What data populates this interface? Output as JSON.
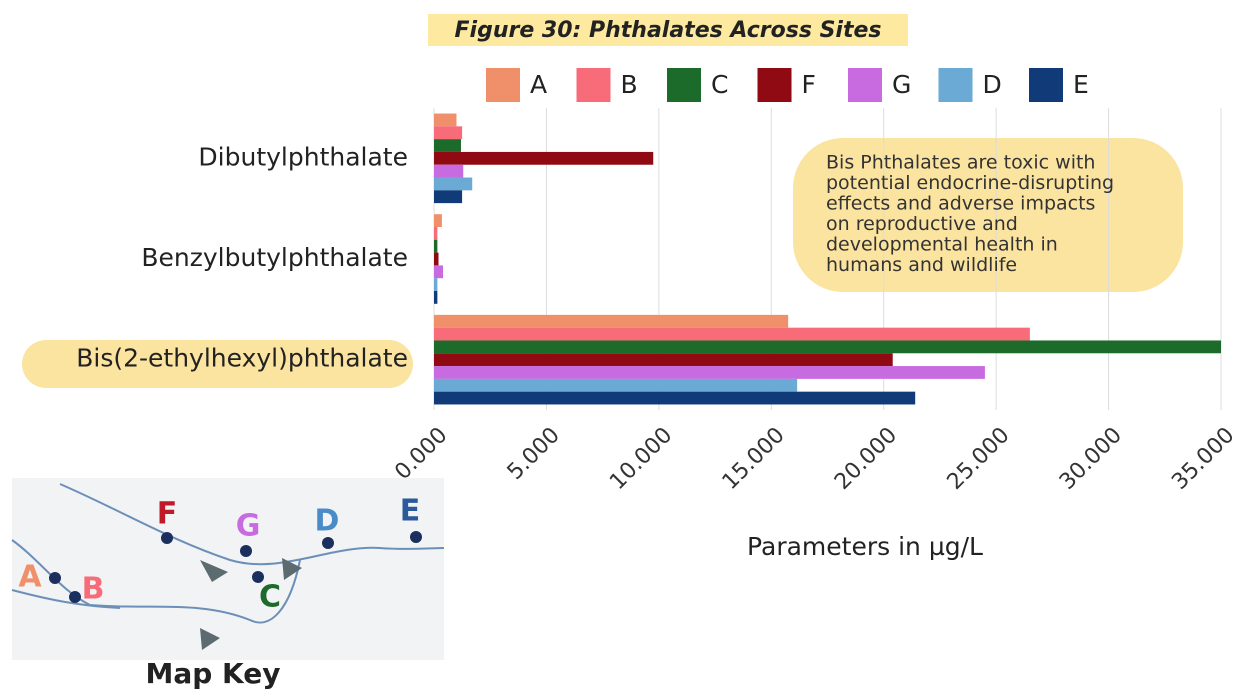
{
  "chart_data": {
    "type": "hbar",
    "title": "Figure 30: Phthalates Across Sites",
    "categories": [
      "Dibutylphthalate",
      "Benzylbutylphthalate",
      "Bis(2-ethylhexyl)phthalate"
    ],
    "series": [
      {
        "name": "A",
        "color": "#f0906a",
        "values": [
          1.0,
          0.35,
          15.75
        ]
      },
      {
        "name": "B",
        "color": "#f86b78",
        "values": [
          1.25,
          0.15,
          26.5
        ]
      },
      {
        "name": "C",
        "color": "#1d6b2a",
        "values": [
          1.2,
          0.15,
          35.0
        ]
      },
      {
        "name": "F",
        "color": "#8f0a12",
        "values": [
          9.75,
          0.2,
          20.4
        ]
      },
      {
        "name": "G",
        "color": "#c86ae0",
        "values": [
          1.3,
          0.4,
          24.5
        ]
      },
      {
        "name": "D",
        "color": "#6aaad4",
        "values": [
          1.7,
          0.15,
          16.15
        ]
      },
      {
        "name": "E",
        "color": "#113a78",
        "values": [
          1.25,
          0.15,
          21.4
        ]
      }
    ],
    "xlabel": "Parameters in µg/L",
    "xlim": [
      0,
      35
    ],
    "xticks": [
      {
        "value": 0,
        "label": "0.000"
      },
      {
        "value": 5,
        "label": "5.000"
      },
      {
        "value": 10,
        "label": "10.000"
      },
      {
        "value": 15,
        "label": "15.000"
      },
      {
        "value": 20,
        "label": "20.000"
      },
      {
        "value": 25,
        "label": "25.000"
      },
      {
        "value": 30,
        "label": "30.000"
      },
      {
        "value": 35,
        "label": "35.000"
      }
    ],
    "grid": true,
    "legend": "top",
    "annotation": [
      "Bis Phthalates are toxic with",
      "potential endocrine-disrupting",
      "effects and adverse impacts",
      "on reproductive and",
      "developmental health in",
      "humans and wildlife"
    ]
  },
  "map": {
    "title": "Map Key",
    "labels": [
      "A",
      "B",
      "F",
      "G",
      "D",
      "E",
      "C"
    ]
  }
}
